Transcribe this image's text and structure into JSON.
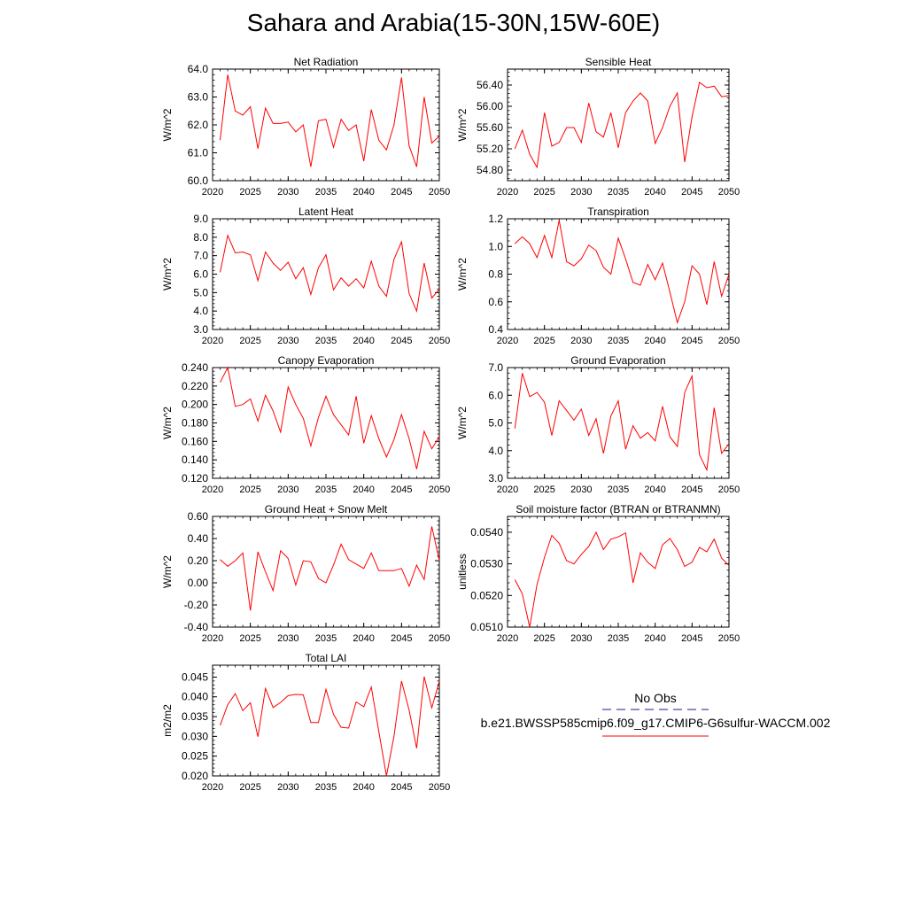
{
  "title": "Sahara and Arabia(15-30N,15W-60E)",
  "colors": {
    "model_line": "#ff0000",
    "obs_line": "#1a1a8c",
    "axis": "#000000"
  },
  "legend": {
    "obs_label": "No Obs",
    "model_label": "b.e21.BWSSP585cmip6.f09_g17.CMIP6-G6sulfur-WACCM.002"
  },
  "chart_data": [
    {
      "type": "line",
      "title": "Net Radiation",
      "xlabel": "",
      "ylabel": "W/m^2",
      "xlim": [
        2020,
        2050
      ],
      "ylim": [
        60.0,
        64.0
      ],
      "xticks": [
        2020,
        2025,
        2030,
        2035,
        2040,
        2045,
        2050
      ],
      "xtick_labels": [
        "2020",
        "2025",
        "2030",
        "2035",
        "2040",
        "2045",
        "2050"
      ],
      "yticks": [
        60.0,
        61.0,
        62.0,
        63.0,
        64.0
      ],
      "ytick_labels": [
        "60.0",
        "61.0",
        "62.0",
        "63.0",
        "64.0"
      ],
      "x": [
        2021,
        2022,
        2023,
        2024,
        2025,
        2026,
        2027,
        2028,
        2029,
        2030,
        2031,
        2032,
        2033,
        2034,
        2035,
        2036,
        2037,
        2038,
        2039,
        2040,
        2041,
        2042,
        2043,
        2044,
        2045,
        2046,
        2047,
        2048,
        2049,
        2050
      ],
      "values": [
        61.45,
        63.8,
        62.5,
        62.35,
        62.65,
        61.15,
        62.6,
        62.05,
        62.05,
        62.1,
        61.75,
        62.0,
        60.5,
        62.15,
        62.2,
        61.2,
        62.2,
        61.8,
        62.0,
        60.7,
        62.55,
        61.45,
        61.1,
        62.0,
        63.7,
        61.25,
        60.5,
        63.0,
        61.35,
        61.6
      ]
    },
    {
      "type": "line",
      "title": "Sensible Heat",
      "xlabel": "",
      "ylabel": "W/m^2",
      "xlim": [
        2020,
        2050
      ],
      "ylim": [
        54.6,
        56.7
      ],
      "xticks": [
        2020,
        2025,
        2030,
        2035,
        2040,
        2045,
        2050
      ],
      "xtick_labels": [
        "2020",
        "2025",
        "2030",
        "2035",
        "2040",
        "2045",
        "2050"
      ],
      "yticks": [
        54.8,
        55.2,
        55.6,
        56.0,
        56.4
      ],
      "ytick_labels": [
        "54.80",
        "55.20",
        "55.60",
        "56.00",
        "56.40"
      ],
      "x": [
        2021,
        2022,
        2023,
        2024,
        2025,
        2026,
        2027,
        2028,
        2029,
        2030,
        2031,
        2032,
        2033,
        2034,
        2035,
        2036,
        2037,
        2038,
        2039,
        2040,
        2041,
        2042,
        2043,
        2044,
        2045,
        2046,
        2047,
        2048,
        2049,
        2050
      ],
      "values": [
        55.2,
        55.55,
        55.1,
        54.85,
        55.88,
        55.25,
        55.32,
        55.6,
        55.6,
        55.32,
        56.06,
        55.52,
        55.42,
        55.88,
        55.22,
        55.88,
        56.1,
        56.25,
        56.1,
        55.3,
        55.6,
        56.0,
        56.25,
        54.95,
        55.8,
        56.45,
        56.35,
        56.38,
        56.18,
        56.2
      ]
    },
    {
      "type": "line",
      "title": "Latent Heat",
      "xlabel": "",
      "ylabel": "W/m^2",
      "xlim": [
        2020,
        2050
      ],
      "ylim": [
        3.0,
        9.0
      ],
      "xticks": [
        2020,
        2025,
        2030,
        2035,
        2040,
        2045,
        2050
      ],
      "xtick_labels": [
        "2020",
        "2025",
        "2030",
        "2035",
        "2040",
        "2045",
        "2050"
      ],
      "yticks": [
        3.0,
        4.0,
        5.0,
        6.0,
        7.0,
        8.0,
        9.0
      ],
      "ytick_labels": [
        "3.0",
        "4.0",
        "5.0",
        "6.0",
        "7.0",
        "8.0",
        "9.0"
      ],
      "x": [
        2021,
        2022,
        2023,
        2024,
        2025,
        2026,
        2027,
        2028,
        2029,
        2030,
        2031,
        2032,
        2033,
        2034,
        2035,
        2036,
        2037,
        2038,
        2039,
        2040,
        2041,
        2042,
        2043,
        2044,
        2045,
        2046,
        2047,
        2048,
        2049,
        2050
      ],
      "values": [
        6.1,
        8.1,
        7.15,
        7.2,
        7.05,
        5.65,
        7.2,
        6.6,
        6.2,
        6.65,
        5.75,
        6.35,
        4.9,
        6.35,
        7.05,
        5.15,
        5.8,
        5.35,
        5.75,
        5.25,
        6.7,
        5.35,
        4.8,
        6.8,
        7.75,
        4.95,
        4.0,
        6.6,
        4.7,
        5.2
      ]
    },
    {
      "type": "line",
      "title": "Transpiration",
      "xlabel": "",
      "ylabel": "W/m^2",
      "xlim": [
        2020,
        2050
      ],
      "ylim": [
        0.4,
        1.2
      ],
      "xticks": [
        2020,
        2025,
        2030,
        2035,
        2040,
        2045,
        2050
      ],
      "xtick_labels": [
        "2020",
        "2025",
        "2030",
        "2035",
        "2040",
        "2045",
        "2050"
      ],
      "yticks": [
        0.4,
        0.6,
        0.8,
        1.0,
        1.2
      ],
      "ytick_labels": [
        "0.4",
        "0.6",
        "0.8",
        "1.0",
        "1.2"
      ],
      "x": [
        2021,
        2022,
        2023,
        2024,
        2025,
        2026,
        2027,
        2028,
        2029,
        2030,
        2031,
        2032,
        2033,
        2034,
        2035,
        2036,
        2037,
        2038,
        2039,
        2040,
        2041,
        2042,
        2043,
        2044,
        2045,
        2046,
        2047,
        2048,
        2049,
        2050
      ],
      "values": [
        1.02,
        1.07,
        1.02,
        0.92,
        1.08,
        0.92,
        1.19,
        0.89,
        0.86,
        0.91,
        1.01,
        0.97,
        0.85,
        0.8,
        1.06,
        0.91,
        0.74,
        0.72,
        0.87,
        0.76,
        0.88,
        0.67,
        0.45,
        0.6,
        0.86,
        0.8,
        0.58,
        0.89,
        0.64,
        0.8
      ]
    },
    {
      "type": "line",
      "title": "Canopy Evaporation",
      "xlabel": "",
      "ylabel": "W/m^2",
      "xlim": [
        2020,
        2050
      ],
      "ylim": [
        0.12,
        0.24
      ],
      "xticks": [
        2020,
        2025,
        2030,
        2035,
        2040,
        2045,
        2050
      ],
      "xtick_labels": [
        "2020",
        "2025",
        "2030",
        "2035",
        "2040",
        "2045",
        "2050"
      ],
      "yticks": [
        0.12,
        0.14,
        0.16,
        0.18,
        0.2,
        0.22,
        0.24
      ],
      "ytick_labels": [
        "0.120",
        "0.140",
        "0.160",
        "0.180",
        "0.200",
        "0.220",
        "0.240"
      ],
      "x": [
        2021,
        2022,
        2023,
        2024,
        2025,
        2026,
        2027,
        2028,
        2029,
        2030,
        2031,
        2032,
        2033,
        2034,
        2035,
        2036,
        2037,
        2038,
        2039,
        2040,
        2041,
        2042,
        2043,
        2044,
        2045,
        2046,
        2047,
        2048,
        2049,
        2050
      ],
      "values": [
        0.224,
        0.24,
        0.198,
        0.2,
        0.206,
        0.182,
        0.21,
        0.193,
        0.17,
        0.219,
        0.2,
        0.185,
        0.155,
        0.186,
        0.209,
        0.189,
        0.178,
        0.167,
        0.209,
        0.158,
        0.188,
        0.163,
        0.143,
        0.162,
        0.189,
        0.163,
        0.13,
        0.171,
        0.152,
        0.165
      ]
    },
    {
      "type": "line",
      "title": "Ground Evaporation",
      "xlabel": "",
      "ylabel": "W/m^2",
      "xlim": [
        2020,
        2050
      ],
      "ylim": [
        3.0,
        7.0
      ],
      "xticks": [
        2020,
        2025,
        2030,
        2035,
        2040,
        2045,
        2050
      ],
      "xtick_labels": [
        "2020",
        "2025",
        "2030",
        "2035",
        "2040",
        "2045",
        "2050"
      ],
      "yticks": [
        3.0,
        4.0,
        5.0,
        6.0,
        7.0
      ],
      "ytick_labels": [
        "3.0",
        "4.0",
        "5.0",
        "6.0",
        "7.0"
      ],
      "x": [
        2021,
        2022,
        2023,
        2024,
        2025,
        2026,
        2027,
        2028,
        2029,
        2030,
        2031,
        2032,
        2033,
        2034,
        2035,
        2036,
        2037,
        2038,
        2039,
        2040,
        2041,
        2042,
        2043,
        2044,
        2045,
        2046,
        2047,
        2048,
        2049,
        2050
      ],
      "values": [
        4.8,
        6.8,
        5.95,
        6.1,
        5.75,
        4.55,
        5.8,
        5.45,
        5.1,
        5.5,
        4.55,
        5.15,
        3.9,
        5.25,
        5.8,
        4.05,
        4.9,
        4.45,
        4.65,
        4.35,
        5.6,
        4.5,
        4.15,
        6.1,
        6.7,
        3.85,
        3.3,
        5.55,
        3.9,
        4.25
      ]
    },
    {
      "type": "line",
      "title": "Ground Heat + Snow Melt",
      "xlabel": "",
      "ylabel": "W/m^2",
      "xlim": [
        2020,
        2050
      ],
      "ylim": [
        -0.4,
        0.6
      ],
      "xticks": [
        2020,
        2025,
        2030,
        2035,
        2040,
        2045,
        2050
      ],
      "xtick_labels": [
        "2020",
        "2025",
        "2030",
        "2035",
        "2040",
        "2045",
        "2050"
      ],
      "yticks": [
        -0.4,
        -0.2,
        0.0,
        0.2,
        0.4,
        0.6
      ],
      "ytick_labels": [
        "-0.40",
        "-0.20",
        "0.00",
        "0.20",
        "0.40",
        "0.60"
      ],
      "x": [
        2021,
        2022,
        2023,
        2024,
        2025,
        2026,
        2027,
        2028,
        2029,
        2030,
        2031,
        2032,
        2033,
        2034,
        2035,
        2036,
        2037,
        2038,
        2039,
        2040,
        2041,
        2042,
        2043,
        2044,
        2045,
        2046,
        2047,
        2048,
        2049,
        2050
      ],
      "values": [
        0.21,
        0.15,
        0.2,
        0.27,
        -0.25,
        0.28,
        0.1,
        -0.07,
        0.29,
        0.22,
        -0.02,
        0.2,
        0.19,
        0.04,
        0.0,
        0.16,
        0.35,
        0.21,
        0.17,
        0.13,
        0.27,
        0.11,
        0.11,
        0.11,
        0.13,
        -0.03,
        0.16,
        0.03,
        0.51,
        0.2
      ]
    },
    {
      "type": "line",
      "title": "Soil moisture factor (BTRAN or BTRANMN)",
      "xlabel": "",
      "ylabel": "unitless",
      "xlim": [
        2020,
        2050
      ],
      "ylim": [
        0.051,
        0.0545
      ],
      "xticks": [
        2020,
        2025,
        2030,
        2035,
        2040,
        2045,
        2050
      ],
      "xtick_labels": [
        "2020",
        "2025",
        "2030",
        "2035",
        "2040",
        "2045",
        "2050"
      ],
      "yticks": [
        0.051,
        0.052,
        0.053,
        0.054
      ],
      "ytick_labels": [
        "0.0510",
        "0.0520",
        "0.0530",
        "0.0540"
      ],
      "x": [
        2021,
        2022,
        2023,
        2024,
        2025,
        2026,
        2027,
        2028,
        2029,
        2030,
        2031,
        2032,
        2033,
        2034,
        2035,
        2036,
        2037,
        2038,
        2039,
        2040,
        2041,
        2042,
        2043,
        2044,
        2045,
        2046,
        2047,
        2048,
        2049,
        2050
      ],
      "values": [
        0.0525,
        0.05205,
        0.051,
        0.05235,
        0.0532,
        0.0539,
        0.05365,
        0.0531,
        0.053,
        0.0533,
        0.05355,
        0.054,
        0.05345,
        0.05378,
        0.05385,
        0.05398,
        0.0524,
        0.05335,
        0.05305,
        0.05285,
        0.0536,
        0.0538,
        0.05345,
        0.05292,
        0.05305,
        0.05352,
        0.05338,
        0.05378,
        0.05318,
        0.05295
      ]
    },
    {
      "type": "line",
      "title": "Total LAI",
      "xlabel": "",
      "ylabel": "m2/m2",
      "xlim": [
        2020,
        2050
      ],
      "ylim": [
        0.02,
        0.048
      ],
      "xticks": [
        2020,
        2025,
        2030,
        2035,
        2040,
        2045,
        2050
      ],
      "xtick_labels": [
        "2020",
        "2025",
        "2030",
        "2035",
        "2040",
        "2045",
        "2050"
      ],
      "yticks": [
        0.02,
        0.025,
        0.03,
        0.035,
        0.04,
        0.045
      ],
      "ytick_labels": [
        "0.020",
        "0.025",
        "0.030",
        "0.035",
        "0.040",
        "0.045"
      ],
      "x": [
        2021,
        2022,
        2023,
        2024,
        2025,
        2026,
        2027,
        2028,
        2029,
        2030,
        2031,
        2032,
        2033,
        2034,
        2035,
        2036,
        2037,
        2038,
        2039,
        2040,
        2041,
        2042,
        2043,
        2044,
        2045,
        2046,
        2047,
        2048,
        2049,
        2050
      ],
      "values": [
        0.0328,
        0.038,
        0.0408,
        0.0365,
        0.0385,
        0.0299,
        0.0421,
        0.0373,
        0.0386,
        0.0403,
        0.0406,
        0.0405,
        0.0335,
        0.0335,
        0.0419,
        0.0356,
        0.0323,
        0.0321,
        0.0387,
        0.0375,
        0.0425,
        0.0312,
        0.02,
        0.03,
        0.044,
        0.0366,
        0.027,
        0.0451,
        0.0372,
        0.044
      ]
    }
  ]
}
